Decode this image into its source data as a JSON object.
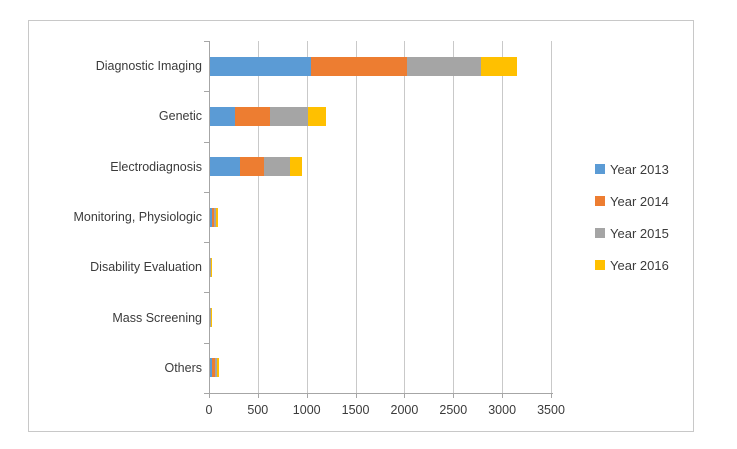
{
  "chart_data": {
    "type": "bar",
    "orientation": "horizontal",
    "stacked": true,
    "title": "",
    "xlabel": "",
    "ylabel": "",
    "categories": [
      "Diagnostic Imaging",
      "Genetic",
      "Electrodiagnosis",
      "Monitoring, Physiologic",
      "Disability Evaluation",
      "Mass Screening",
      "Others"
    ],
    "series": [
      {
        "name": "Year 2013",
        "color": "#5B9BD5",
        "values": [
          1040,
          270,
          320,
          30,
          5,
          4,
          35
        ]
      },
      {
        "name": "Year 2014",
        "color": "#ED7D31",
        "values": [
          990,
          355,
          245,
          20,
          10,
          10,
          25
        ]
      },
      {
        "name": "Year 2015",
        "color": "#A5A5A5",
        "values": [
          750,
          390,
          265,
          20,
          6,
          5,
          20
        ]
      },
      {
        "name": "Year 2016",
        "color": "#FFC000",
        "values": [
          370,
          185,
          120,
          20,
          4,
          3,
          25
        ]
      }
    ],
    "xlim": [
      0,
      3500
    ],
    "xticks": [
      0,
      500,
      1000,
      1500,
      2000,
      2500,
      3000,
      3500
    ],
    "grid": true,
    "legend_position": "right",
    "gridline_color": "#c9c9c9",
    "axis_color": "#a6a6a6",
    "frame_border_color": "#c8c8c8",
    "text_color": "#3b3b3b"
  }
}
